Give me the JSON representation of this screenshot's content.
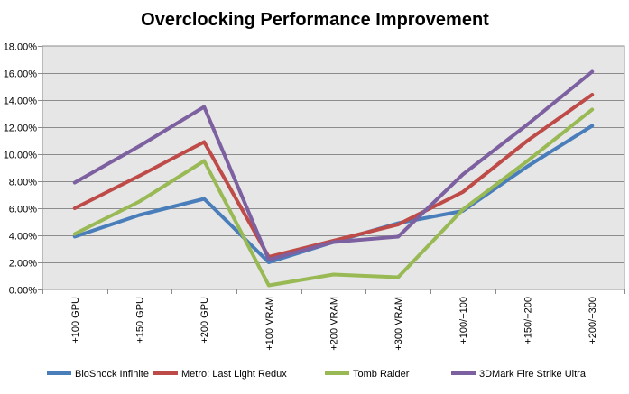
{
  "chart_data": {
    "type": "line",
    "title": "Overclocking Performance Improvement",
    "xlabel": "",
    "ylabel": "",
    "ylim": [
      0,
      18
    ],
    "y_tick_step": 2,
    "y_tick_format": "percent_2dp",
    "grid": true,
    "legend_position": "bottom",
    "categories": [
      "+100 GPU",
      "+150 GPU",
      "+200 GPU",
      "+100 VRAM",
      "+200 VRAM",
      "+300 VRAM",
      "+100/+100",
      "+150/+200",
      "+200/+300"
    ],
    "series": [
      {
        "name": "BioShock Infinite",
        "color": "#4a7ebb",
        "values": [
          3.9,
          5.5,
          6.7,
          2.0,
          3.5,
          4.9,
          5.8,
          9.1,
          12.1
        ]
      },
      {
        "name": "Metro: Last Light Redux",
        "color": "#be4b48",
        "values": [
          6.0,
          8.4,
          10.9,
          2.4,
          3.6,
          4.8,
          7.2,
          11.0,
          14.4
        ]
      },
      {
        "name": "Tomb Raider",
        "color": "#98b954",
        "values": [
          4.1,
          6.5,
          9.5,
          0.3,
          1.1,
          0.9,
          5.9,
          9.5,
          13.3
        ]
      },
      {
        "name": "3DMark Fire Strike Ultra",
        "color": "#7d60a0",
        "values": [
          7.9,
          10.6,
          13.5,
          2.2,
          3.5,
          3.9,
          8.5,
          12.2,
          16.1
        ]
      }
    ]
  }
}
